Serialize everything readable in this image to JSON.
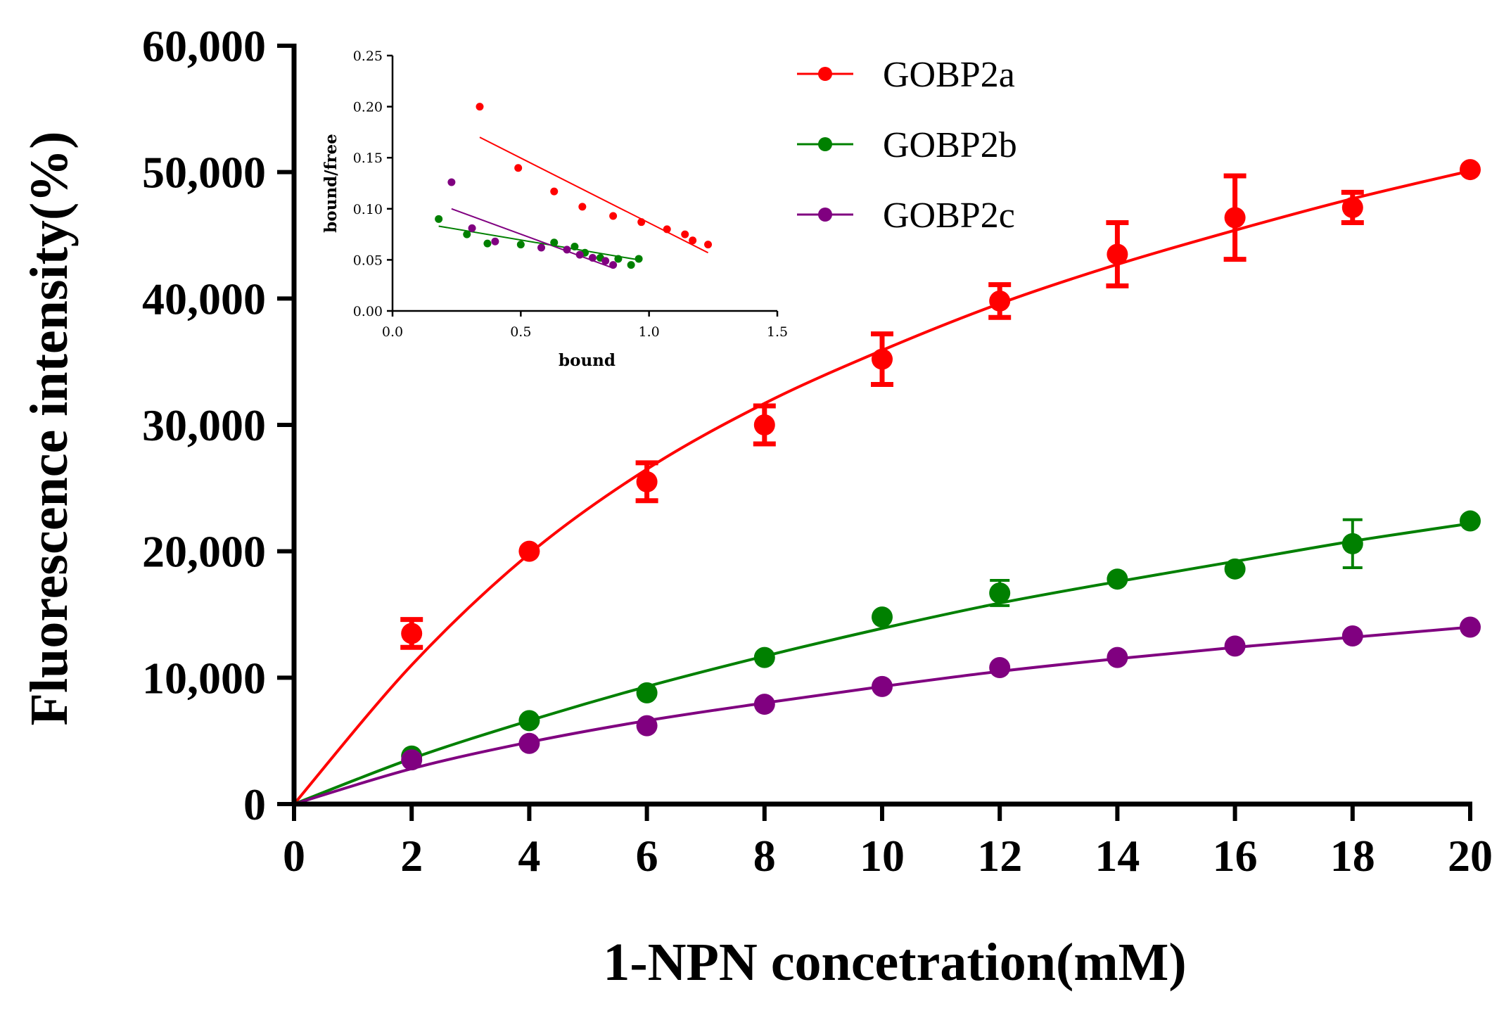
{
  "chart_data": [
    {
      "type": "scatter",
      "title": "",
      "xlabel": "1-NPN concetration(mM)",
      "ylabel": "Fluorescence intensity(%)",
      "xlim": [
        0,
        20
      ],
      "ylim": [
        0,
        60000
      ],
      "x_ticks": [
        0,
        2,
        4,
        6,
        8,
        10,
        12,
        14,
        16,
        18,
        20
      ],
      "y_ticks": [
        0,
        10000,
        20000,
        30000,
        40000,
        50000,
        60000
      ],
      "x_tick_labels": [
        "0",
        "2",
        "4",
        "6",
        "8",
        "10",
        "12",
        "14",
        "16",
        "18",
        "20"
      ],
      "y_tick_labels": [
        "0",
        "10,000",
        "20,000",
        "30,000",
        "40,000",
        "50,000",
        "60,000"
      ],
      "grid": false,
      "legend": {
        "placement": "top-right"
      },
      "series": [
        {
          "name": "GOBP2a",
          "color": "#ff0000",
          "fit": "saturation curve",
          "x": [
            2,
            4,
            6,
            8,
            10,
            12,
            14,
            16,
            18,
            20
          ],
          "y": [
            13500,
            20000,
            25500,
            30000,
            35200,
            39800,
            43500,
            46400,
            47200,
            50200
          ],
          "error": [
            1100,
            0,
            1500,
            1500,
            2000,
            1300,
            2500,
            3300,
            1200,
            0
          ],
          "fit_y": [
            11000,
            19800,
            26500,
            31700,
            35900,
            39600,
            42700,
            45400,
            47900,
            50100
          ]
        },
        {
          "name": "GOBP2b",
          "color": "#008000",
          "fit": "saturation curve",
          "x": [
            2,
            4,
            6,
            8,
            10,
            12,
            14,
            16,
            18,
            20
          ],
          "y": [
            3800,
            6600,
            8800,
            11600,
            14800,
            16700,
            17800,
            18600,
            20600,
            22400
          ],
          "error": [
            0,
            0,
            0,
            0,
            0,
            1000,
            0,
            0,
            1900,
            0
          ],
          "fit_y": [
            3600,
            6600,
            9300,
            11700,
            13900,
            15900,
            17600,
            19200,
            20800,
            22200
          ]
        },
        {
          "name": "GOBP2c",
          "color": "#800080",
          "fit": "saturation curve",
          "x": [
            2,
            4,
            6,
            8,
            10,
            12,
            14,
            16,
            18,
            20
          ],
          "y": [
            3500,
            4800,
            6200,
            7900,
            9300,
            10800,
            11600,
            12500,
            13300,
            14000
          ],
          "error": [
            0,
            0,
            0,
            0,
            0,
            0,
            0,
            0,
            0,
            0
          ],
          "fit_y": [
            2800,
            4900,
            6600,
            8000,
            9300,
            10500,
            11500,
            12400,
            13200,
            14000
          ]
        }
      ]
    },
    {
      "type": "scatter",
      "title": "",
      "xlabel": "bound",
      "ylabel": "bound/free",
      "xlim": [
        0,
        1.5
      ],
      "ylim": [
        0,
        0.25
      ],
      "x_ticks": [
        0,
        0.5,
        1.0,
        1.5
      ],
      "y_ticks": [
        0,
        0.05,
        0.1,
        0.15,
        0.2,
        0.25
      ],
      "x_tick_labels": [
        "0.0",
        "0.5",
        "1.0",
        "1.5"
      ],
      "y_tick_labels": [
        "0.00",
        "0.05",
        "0.10",
        "0.15",
        "0.20",
        "0.25"
      ],
      "grid": false,
      "series": [
        {
          "name": "GOBP2a",
          "color": "#ff0000",
          "x": [
            0.34,
            0.49,
            0.63,
            0.74,
            0.86,
            0.97,
            1.07,
            1.14,
            1.17,
            1.23
          ],
          "y": [
            0.2,
            0.14,
            0.117,
            0.102,
            0.093,
            0.087,
            0.08,
            0.075,
            0.069,
            0.065
          ],
          "fit_line": [
            [
              0.34,
              0.17
            ],
            [
              1.23,
              0.057
            ]
          ]
        },
        {
          "name": "GOBP2b",
          "color": "#008000",
          "x": [
            0.18,
            0.29,
            0.37,
            0.5,
            0.63,
            0.71,
            0.75,
            0.81,
            0.88,
            0.93,
            0.96
          ],
          "y": [
            0.09,
            0.075,
            0.066,
            0.065,
            0.067,
            0.063,
            0.057,
            0.052,
            0.051,
            0.045,
            0.051
          ],
          "fit_line": [
            [
              0.18,
              0.083
            ],
            [
              0.96,
              0.05
            ]
          ]
        },
        {
          "name": "GOBP2c",
          "color": "#800080",
          "x": [
            0.23,
            0.31,
            0.4,
            0.58,
            0.68,
            0.73,
            0.78,
            0.83,
            0.86
          ],
          "y": [
            0.126,
            0.081,
            0.068,
            0.062,
            0.06,
            0.055,
            0.052,
            0.049,
            0.045
          ],
          "fit_line": [
            [
              0.23,
              0.1
            ],
            [
              0.86,
              0.042
            ]
          ]
        }
      ]
    }
  ]
}
